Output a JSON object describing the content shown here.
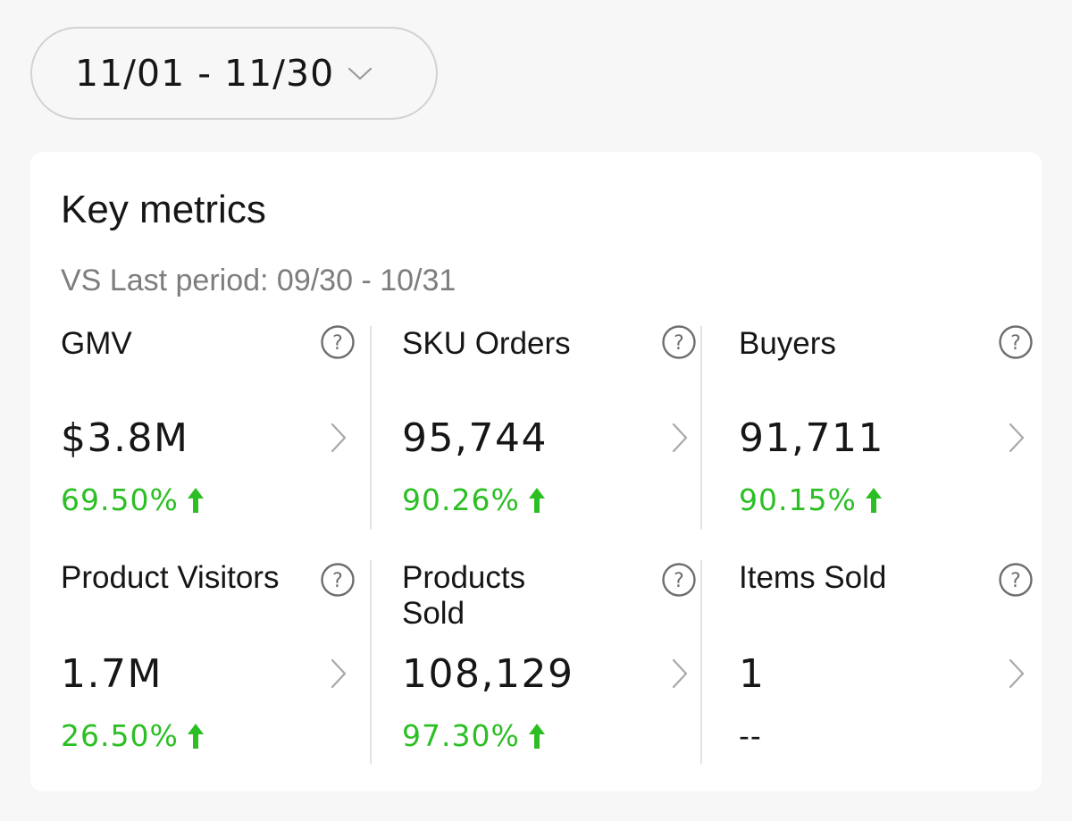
{
  "date_range": {
    "label": "11/01 - 11/30"
  },
  "key_metrics": {
    "title": "Key metrics",
    "comparison": "VS Last period: 09/30 - 10/31",
    "metrics": [
      {
        "label": "GMV",
        "value": "$3.8M",
        "change": "69.50%",
        "trend": "up"
      },
      {
        "label": "SKU Orders",
        "value": "95,744",
        "change": "90.26%",
        "trend": "up"
      },
      {
        "label": "Buyers",
        "value": "91,711",
        "change": "90.15%",
        "trend": "up"
      },
      {
        "label": "Product Visi­tors",
        "value": "1.7M",
        "change": "26.50%",
        "trend": "up"
      },
      {
        "label": "Products Sold",
        "value": "108,129",
        "change": "97.30%",
        "trend": "up"
      },
      {
        "label": "Items Sold",
        "value": "1",
        "change": "--",
        "trend": "none"
      }
    ]
  },
  "colors": {
    "positive": "#2bbf23",
    "muted_text": "#7d7d7d",
    "background": "#f7f7f7",
    "card": "#ffffff"
  },
  "icons": {
    "dropdown": "chevron-down-icon",
    "help": "question-circle-icon",
    "detail": "chevron-right-icon",
    "trend_up": "arrow-up-icon"
  }
}
